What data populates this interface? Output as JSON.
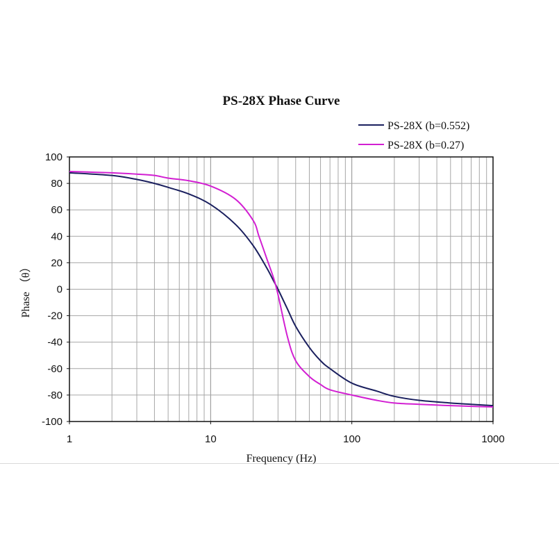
{
  "chart_data": {
    "type": "line",
    "title": "PS-28X Phase Curve",
    "xlabel": "Frequency (Hz)",
    "ylabel": "Phase （θ）",
    "xscale": "log",
    "xlim": [
      1,
      1000
    ],
    "ylim": [
      -100,
      100
    ],
    "x_ticks": [
      "1",
      "10",
      "100",
      "1000"
    ],
    "y_ticks": [
      "100",
      "80",
      "60",
      "40",
      "20",
      "0",
      "-20",
      "-40",
      "-60",
      "-80",
      "-100"
    ],
    "grid": true,
    "legend_position": "top-right",
    "series": [
      {
        "name": "PS-28X (b=0.552)",
        "color": "#1a1f5e",
        "x": [
          1,
          2,
          3,
          4,
          5,
          7,
          10,
          15,
          20,
          25,
          28,
          30,
          35,
          40,
          50,
          60,
          70,
          100,
          150,
          200,
          300,
          500,
          700,
          1000
        ],
        "y": [
          88,
          86,
          83,
          80,
          77,
          72,
          64,
          49,
          33,
          16,
          6,
          0,
          -15,
          -28,
          -44,
          -54,
          -60,
          -71,
          -77,
          -81,
          -84,
          -86,
          -87,
          -88
        ]
      },
      {
        "name": "PS-28X (b=0.27)",
        "color": "#d21fd2",
        "x": [
          1,
          2,
          3,
          4,
          5,
          7,
          10,
          15,
          20,
          22,
          25,
          28,
          30,
          35,
          40,
          50,
          60,
          70,
          100,
          150,
          200,
          300,
          500,
          700,
          1000
        ],
        "y": [
          89,
          88,
          87,
          86,
          84,
          82,
          78,
          68,
          52,
          40,
          23,
          8,
          -4,
          -36,
          -54,
          -66,
          -72,
          -76,
          -80,
          -84,
          -86,
          -87,
          -88,
          -88.5,
          -89
        ]
      }
    ]
  }
}
